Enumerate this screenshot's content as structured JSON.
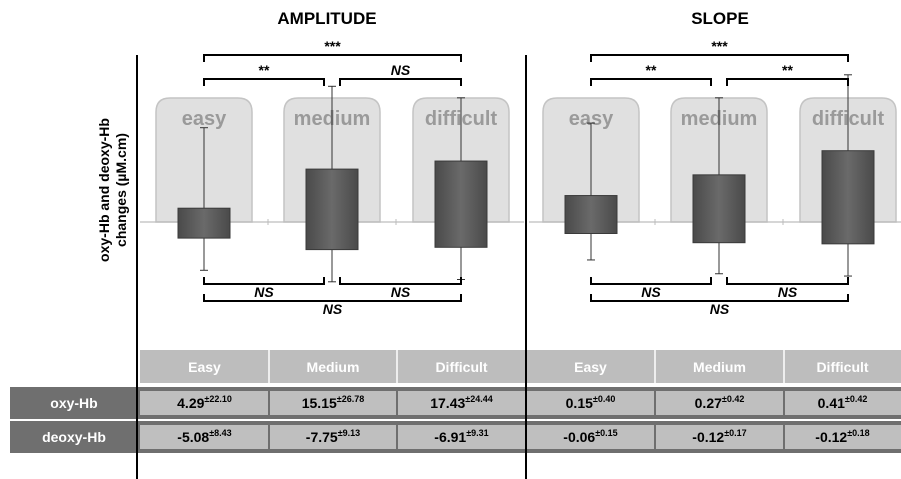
{
  "chart_data": [
    {
      "type": "box",
      "title": "AMPLITUDE",
      "ylabel_lines": [
        "oxy-Hb and deoxy-Hb",
        "changes (µM.cm)"
      ],
      "categories": [
        "easy",
        "medium",
        "difficult"
      ],
      "boxes": [
        {
          "box_top": 0.12,
          "box_bottom": -0.14,
          "whisker_top": 0.82,
          "whisker_bottom": -0.42
        },
        {
          "box_top": 0.46,
          "box_bottom": -0.24,
          "whisker_top": 1.18,
          "whisker_bottom": -0.52
        },
        {
          "box_top": 0.53,
          "box_bottom": -0.22,
          "whisker_top": 1.08,
          "whisker_bottom": -0.5
        }
      ],
      "significance_top": [
        {
          "from": 0,
          "to": 1,
          "label": "**"
        },
        {
          "from": 1,
          "to": 2,
          "label": "NS"
        },
        {
          "from": 0,
          "to": 2,
          "label": "***"
        }
      ],
      "significance_bottom": [
        {
          "from": 0,
          "to": 1,
          "label": "NS"
        },
        {
          "from": 1,
          "to": 2,
          "label": "NS"
        },
        {
          "from": 0,
          "to": 2,
          "label": "NS"
        }
      ]
    },
    {
      "type": "box",
      "title": "SLOPE",
      "categories": [
        "easy",
        "medium",
        "difficult"
      ],
      "boxes": [
        {
          "box_top": 0.23,
          "box_bottom": -0.1,
          "whisker_top": 0.86,
          "whisker_bottom": -0.33
        },
        {
          "box_top": 0.41,
          "box_bottom": -0.18,
          "whisker_top": 1.08,
          "whisker_bottom": -0.45
        },
        {
          "box_top": 0.62,
          "box_bottom": -0.19,
          "whisker_top": 1.28,
          "whisker_bottom": -0.47
        }
      ],
      "significance_top": [
        {
          "from": 0,
          "to": 1,
          "label": "**"
        },
        {
          "from": 1,
          "to": 2,
          "label": "**"
        },
        {
          "from": 0,
          "to": 2,
          "label": "***"
        }
      ],
      "significance_bottom": [
        {
          "from": 0,
          "to": 1,
          "label": "NS"
        },
        {
          "from": 1,
          "to": 2,
          "label": "NS"
        },
        {
          "from": 0,
          "to": 2,
          "label": "NS"
        }
      ]
    }
  ],
  "table": {
    "headers": [
      "Easy",
      "Medium",
      "Difficult",
      "Easy",
      "Medium",
      "Difficult"
    ],
    "rows": [
      {
        "label": "oxy-Hb",
        "cells": [
          {
            "value": "4.29",
            "sd": "±22.10"
          },
          {
            "value": "15.15",
            "sd": "±26.78"
          },
          {
            "value": "17.43",
            "sd": "±24.44"
          },
          {
            "value": "0.15",
            "sd": "±0.40"
          },
          {
            "value": "0.27",
            "sd": "±0.42"
          },
          {
            "value": "0.41",
            "sd": "±0.42"
          }
        ]
      },
      {
        "label": "deoxy-Hb",
        "cells": [
          {
            "value": "-5.08",
            "sd": "±8.43"
          },
          {
            "value": "-7.75",
            "sd": "±9.13"
          },
          {
            "value": "-6.91",
            "sd": "±9.31"
          },
          {
            "value": "-0.06",
            "sd": "±0.15"
          },
          {
            "value": "-0.12",
            "sd": "±0.17"
          },
          {
            "value": "-0.12",
            "sd": "±0.18"
          }
        ]
      }
    ]
  },
  "colors": {
    "box": "#5a5a5a",
    "panel_bg": "#e0e0e0",
    "panel_border": "#c4c4c4",
    "category_text": "#9a9a9a",
    "header_bg": "#bdbdbd",
    "row_bg": "#6f6f6f"
  }
}
